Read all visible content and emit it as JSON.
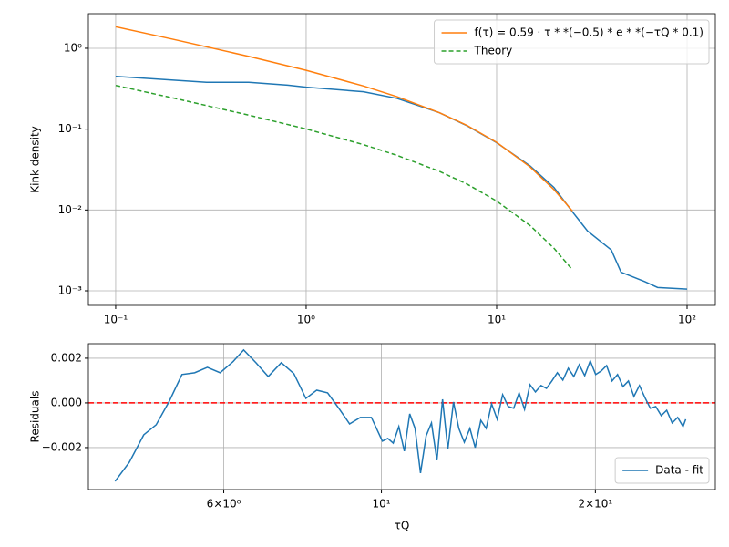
{
  "chart_data": [
    {
      "type": "line",
      "xscale": "log",
      "yscale": "log",
      "grid": true,
      "ylabel": "Kink density",
      "legend": "upper right",
      "xlim": [
        0.0719,
        140.7
      ],
      "ylim": [
        0.00066,
        2.68
      ],
      "xticks": [
        {
          "value": 0.1,
          "label": "10⁻¹"
        },
        {
          "value": 1,
          "label": "10⁰"
        },
        {
          "value": 10,
          "label": "10¹"
        },
        {
          "value": 100,
          "label": "10²"
        }
      ],
      "yticks": [
        {
          "value": 0.001,
          "label": "10⁻³"
        },
        {
          "value": 0.01,
          "label": "10⁻²"
        },
        {
          "value": 0.1,
          "label": "10⁻¹"
        },
        {
          "value": 1,
          "label": "10⁰"
        }
      ],
      "series": [
        {
          "color": "#1f77b4",
          "style": "solid",
          "x": [
            0.1,
            0.3,
            0.5,
            0.8,
            1,
            2,
            3,
            5,
            7,
            10,
            15,
            20,
            25,
            30,
            40,
            45,
            60,
            70,
            100
          ],
          "values": [
            0.45,
            0.38,
            0.38,
            0.35,
            0.33,
            0.29,
            0.24,
            0.16,
            0.11,
            0.068,
            0.035,
            0.019,
            0.0095,
            0.0055,
            0.0032,
            0.0017,
            0.0013,
            0.0011,
            0.00105
          ]
        },
        {
          "name": "f(τ) = 0.59 · τ * *(−0.5) * e * *(−τQ * 0.1)",
          "color": "#ff7f0e",
          "style": "solid",
          "x": [
            0.1,
            0.2,
            0.5,
            1,
            2,
            3,
            5,
            7,
            10,
            15,
            20,
            25
          ],
          "values": [
            1.847,
            1.293,
            0.794,
            0.534,
            0.342,
            0.252,
            0.16,
            0.111,
            0.0686,
            0.034,
            0.01785,
            0.00969
          ]
        },
        {
          "name": "Theory",
          "color": "#2ca02c",
          "style": "dashed",
          "x": [
            0.1,
            0.2,
            0.5,
            1,
            2,
            3,
            5,
            7,
            10,
            15,
            20,
            25
          ],
          "values": [
            0.347,
            0.243,
            0.149,
            0.1005,
            0.0643,
            0.0474,
            0.0301,
            0.0209,
            0.0129,
            0.0064,
            0.00336,
            0.00182
          ]
        }
      ]
    },
    {
      "type": "line",
      "xscale": "log",
      "yscale": "linear",
      "grid": true,
      "ylabel": "Residuals",
      "xlabel": "τQ",
      "legend": "lower right",
      "xlim": [
        3.87,
        29.5
      ],
      "ylim": [
        -0.00388,
        0.00265
      ],
      "xticks": [
        {
          "value": 6,
          "label": "6×10⁰"
        },
        {
          "value": 10,
          "label": "10¹"
        },
        {
          "value": 20,
          "label": "2×10¹"
        }
      ],
      "yticks": [
        {
          "value": -0.002,
          "label": "−0.002"
        },
        {
          "value": 0,
          "label": "0.000"
        },
        {
          "value": 0.002,
          "label": "0.002"
        }
      ],
      "hline": {
        "value": 0,
        "color": "#ff0000"
      },
      "series": [
        {
          "name": "Data - fit",
          "color": "#1f77b4",
          "style": "solid",
          "x": [
            4.22,
            4.42,
            4.63,
            4.82,
            5.03,
            5.24,
            5.46,
            5.69,
            5.93,
            6.18,
            6.4,
            6.66,
            6.93,
            7.23,
            7.53,
            7.83,
            8.11,
            8.4,
            8.71,
            9.02,
            9.34,
            9.68,
            10.03,
            10.21,
            10.39,
            10.58,
            10.77,
            10.96,
            11.15,
            11.35,
            11.56,
            11.76,
            11.97,
            12.19,
            12.4,
            12.63,
            12.85,
            13.08,
            13.32,
            13.55,
            13.8,
            14.04,
            14.29,
            14.55,
            14.81,
            15.08,
            15.35,
            15.62,
            15.9,
            16.18,
            16.47,
            16.77,
            17.07,
            17.37,
            17.68,
            18.0,
            18.32,
            18.65,
            18.98,
            19.32,
            19.67,
            20.02,
            20.38,
            20.74,
            21.11,
            21.49,
            21.87,
            22.26,
            22.66,
            23.07,
            23.48,
            23.9,
            24.32,
            24.76,
            25.2,
            25.65,
            26.11,
            26.57,
            26.8
          ],
          "values": [
            -0.00351,
            -0.00265,
            -0.00143,
            -0.00098,
            8e-05,
            0.00127,
            0.00135,
            0.00159,
            0.00135,
            0.00184,
            0.00237,
            0.0018,
            0.00118,
            0.0018,
            0.00131,
            0.0002,
            0.00057,
            0.00045,
            -0.00024,
            -0.00094,
            -0.00065,
            -0.00065,
            -0.00171,
            -0.00159,
            -0.0018,
            -0.00106,
            -0.00216,
            -0.00049,
            -0.00114,
            -0.00314,
            -0.00147,
            -0.0009,
            -0.00257,
            0.00016,
            -0.00208,
            4e-05,
            -0.00114,
            -0.00176,
            -0.00114,
            -0.002,
            -0.00078,
            -0.00114,
            -4e-05,
            -0.00073,
            0.00037,
            -0.00016,
            -0.00024,
            0.00045,
            -0.00029,
            0.00082,
            0.00049,
            0.00078,
            0.00065,
            0.00098,
            0.00135,
            0.00102,
            0.00155,
            0.00118,
            0.00171,
            0.00122,
            0.00188,
            0.00127,
            0.00143,
            0.00167,
            0.00098,
            0.00127,
            0.00073,
            0.00098,
            0.00029,
            0.00078,
            0.00024,
            -0.00024,
            -0.00016,
            -0.00057,
            -0.00033,
            -0.0009,
            -0.00065,
            -0.00106,
            -0.00073
          ]
        }
      ]
    }
  ]
}
